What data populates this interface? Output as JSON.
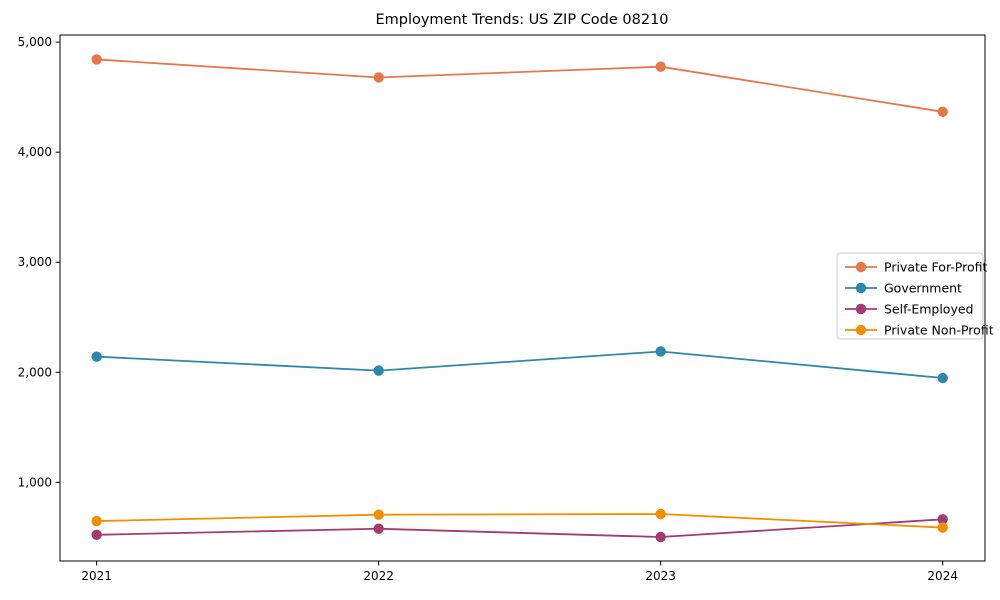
{
  "chart_data": {
    "type": "line",
    "title": "Employment Trends: US ZIP Code 08210",
    "xlabel": "",
    "ylabel": "",
    "x": [
      2021,
      2022,
      2023,
      2024
    ],
    "x_tick_labels": [
      "2021",
      "2022",
      "2023",
      "2024"
    ],
    "y_ticks": [
      1000,
      2000,
      3000,
      4000,
      5000
    ],
    "y_tick_labels": [
      "1,000",
      "2,000",
      "3,000",
      "4,000",
      "5,000"
    ],
    "xlim": [
      2020.87,
      2024.15
    ],
    "ylim": [
      285,
      5065
    ],
    "grid": false,
    "legend_position": "center-right",
    "series": [
      {
        "name": "Private For-Profit",
        "color": "#E8764B",
        "values": [
          4843,
          4679,
          4777,
          4367
        ]
      },
      {
        "name": "Government",
        "color": "#2E86AB",
        "values": [
          2142,
          2015,
          2189,
          1948
        ]
      },
      {
        "name": "Self-Employed",
        "color": "#A23B72",
        "values": [
          523,
          578,
          503,
          664
        ]
      },
      {
        "name": "Private Non-Profit",
        "color": "#F18F01",
        "values": [
          648,
          706,
          712,
          589
        ]
      }
    ],
    "marker": "circle",
    "axis_color": "#000000",
    "legend_border_color": "#cccccc"
  }
}
